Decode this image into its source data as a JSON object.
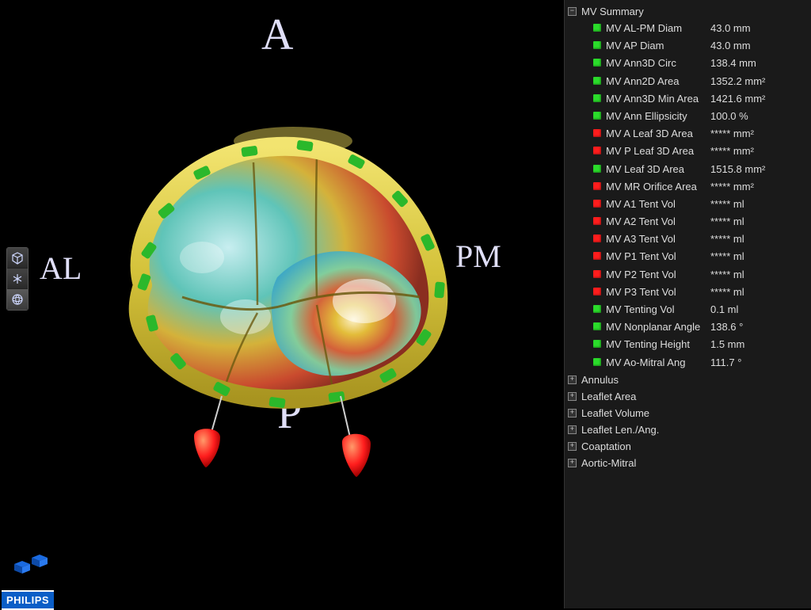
{
  "orientation": {
    "A": "A",
    "P": "P",
    "AL": "AL",
    "PM": "PM"
  },
  "brand": "PHILIPS",
  "colors": {
    "panel_bg": "#1a1a1a",
    "status_green": "#2bdc2b",
    "status_red": "#ff1d1d",
    "label_text": "#dddddd",
    "orient_text": "#e0dff8",
    "annulus_ring": "#d4c23a",
    "annulus_marker": "#2bb82b",
    "papillary": "#ff1d1d",
    "surface_gradient": [
      "#b23a2e",
      "#e4c23a",
      "#7fcf9f",
      "#3ea7c4"
    ]
  },
  "sections": {
    "summary": {
      "title": "MV Summary",
      "expanded": true,
      "items": [
        {
          "label": "MV AL-PM Diam",
          "value": "43.0 mm",
          "status": "green"
        },
        {
          "label": "MV AP Diam",
          "value": "43.0 mm",
          "status": "green"
        },
        {
          "label": "MV Ann3D Circ",
          "value": "138.4 mm",
          "status": "green"
        },
        {
          "label": "MV Ann2D Area",
          "value": "1352.2 mm²",
          "status": "green"
        },
        {
          "label": "MV Ann3D Min Area",
          "value": "1421.6 mm²",
          "status": "green"
        },
        {
          "label": "MV Ann Ellipsicity",
          "value": "100.0 %",
          "status": "green"
        },
        {
          "label": "MV A Leaf 3D Area",
          "value": "***** mm²",
          "status": "red"
        },
        {
          "label": "MV P Leaf 3D Area",
          "value": "***** mm²",
          "status": "red"
        },
        {
          "label": "MV Leaf 3D Area",
          "value": "1515.8 mm²",
          "status": "green"
        },
        {
          "label": "MV MR Orifice Area",
          "value": "***** mm²",
          "status": "red"
        },
        {
          "label": "MV A1 Tent Vol",
          "value": "***** ml",
          "status": "red"
        },
        {
          "label": "MV A2 Tent Vol",
          "value": "***** ml",
          "status": "red"
        },
        {
          "label": "MV A3 Tent Vol",
          "value": "***** ml",
          "status": "red"
        },
        {
          "label": "MV P1 Tent Vol",
          "value": "***** ml",
          "status": "red"
        },
        {
          "label": "MV P2 Tent Vol",
          "value": "***** ml",
          "status": "red"
        },
        {
          "label": "MV P3 Tent Vol",
          "value": "***** ml",
          "status": "red"
        },
        {
          "label": "MV Tenting Vol",
          "value": "0.1 ml",
          "status": "green"
        },
        {
          "label": "MV Nonplanar Angle",
          "value": "138.6 °",
          "status": "green"
        },
        {
          "label": "MV Tenting Height",
          "value": "1.5 mm",
          "status": "green"
        },
        {
          "label": "MV Ao-Mitral Ang",
          "value": "111.7 °",
          "status": "green"
        }
      ]
    },
    "collapsed": [
      "Annulus",
      "Leaflet Area",
      "Leaflet Volume",
      "Leaflet Len./Ang.",
      "Coaptation",
      "Aortic-Mitral"
    ]
  }
}
